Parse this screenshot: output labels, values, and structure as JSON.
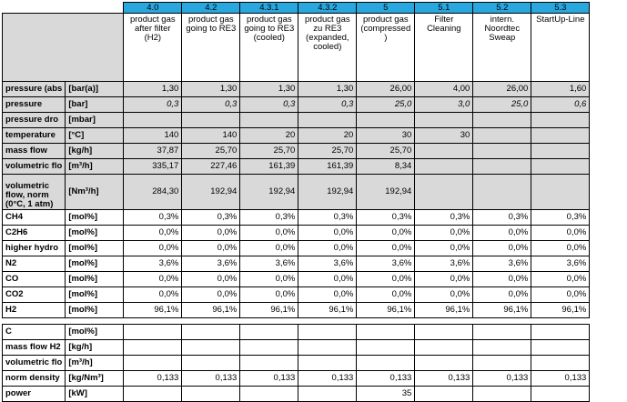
{
  "columns": [
    {
      "id": "4.0",
      "desc": "product gas after filter (H2)"
    },
    {
      "id": "4.2",
      "desc": "product gas going to RE3"
    },
    {
      "id": "4.3.1",
      "desc": "product gas going to RE3 (cooled)"
    },
    {
      "id": "4.3.2",
      "desc": "product gas zu RE3 (expanded, cooled)"
    },
    {
      "id": "5",
      "desc": "product gas (compressed )"
    },
    {
      "id": "5.1",
      "desc": "Filter Cleaning"
    },
    {
      "id": "5.2",
      "desc": "intern. Noordtec Sweap"
    },
    {
      "id": "5.3",
      "desc": "StartUp-Line"
    }
  ],
  "rows": [
    {
      "label": "pressure (abs",
      "unit": "[bar(a)]",
      "values": [
        "1,30",
        "1,30",
        "1,30",
        "1,30",
        "26,00",
        "4,00",
        "26,00",
        "1,60"
      ],
      "shade": true,
      "italic": false
    },
    {
      "label": "pressure",
      "unit": "[bar]",
      "values": [
        "0,3",
        "0,3",
        "0,3",
        "0,3",
        "25,0",
        "3,0",
        "25,0",
        "0,6"
      ],
      "shade": true,
      "italic": true
    },
    {
      "label": "pressure dro",
      "unit": "[mbar]",
      "values": [
        "",
        "",
        "",
        "",
        "",
        "",
        "",
        ""
      ],
      "shade": true,
      "italic": false
    },
    {
      "label": "temperature",
      "unit": "[°C]",
      "values": [
        "140",
        "140",
        "20",
        "20",
        "30",
        "30",
        "",
        ""
      ],
      "shade": true,
      "italic": false
    },
    {
      "label": "mass flow",
      "unit": "[kg/h]",
      "values": [
        "37,87",
        "25,70",
        "25,70",
        "25,70",
        "25,70",
        "",
        "",
        ""
      ],
      "shade": true,
      "italic": false
    },
    {
      "label": "volumetric flo",
      "unit": "[m³/h]",
      "values": [
        "335,17",
        "227,46",
        "161,39",
        "161,39",
        "8,34",
        "",
        "",
        ""
      ],
      "shade": true,
      "italic": false
    },
    {
      "label": "volumetric flow, norm (0°C, 1 atm)",
      "unit": "[Nm³/h]",
      "values": [
        "284,30",
        "192,94",
        "192,94",
        "192,94",
        "192,94",
        "",
        "",
        ""
      ],
      "shade": true,
      "italic": false,
      "tall": true
    },
    {
      "label": "CH4",
      "unit": "[mol%]",
      "values": [
        "0,3%",
        "0,3%",
        "0,3%",
        "0,3%",
        "0,3%",
        "0,3%",
        "0,3%",
        "0,3%"
      ],
      "shade": false,
      "italic": false
    },
    {
      "label": "C2H6",
      "unit": "[mol%]",
      "values": [
        "0,0%",
        "0,0%",
        "0,0%",
        "0,0%",
        "0,0%",
        "0,0%",
        "0,0%",
        "0,0%"
      ],
      "shade": false,
      "italic": false
    },
    {
      "label": "higher hydro",
      "unit": "[mol%]",
      "values": [
        "0,0%",
        "0,0%",
        "0,0%",
        "0,0%",
        "0,0%",
        "0,0%",
        "0,0%",
        "0,0%"
      ],
      "shade": false,
      "italic": false
    },
    {
      "label": "N2",
      "unit": "[mol%]",
      "values": [
        "3,6%",
        "3,6%",
        "3,6%",
        "3,6%",
        "3,6%",
        "3,6%",
        "3,6%",
        "3,6%"
      ],
      "shade": false,
      "italic": false
    },
    {
      "label": "CO",
      "unit": "[mol%]",
      "values": [
        "0,0%",
        "0,0%",
        "0,0%",
        "0,0%",
        "0,0%",
        "0,0%",
        "0,0%",
        "0,0%"
      ],
      "shade": false,
      "italic": false
    },
    {
      "label": "CO2",
      "unit": "[mol%]",
      "values": [
        "0,0%",
        "0,0%",
        "0,0%",
        "0,0%",
        "0,0%",
        "0,0%",
        "0,0%",
        "0,0%"
      ],
      "shade": false,
      "italic": false
    },
    {
      "label": "H2",
      "unit": "[mol%]",
      "values": [
        "96,1%",
        "96,1%",
        "96,1%",
        "96,1%",
        "96,1%",
        "96,1%",
        "96,1%",
        "96,1%"
      ],
      "shade": false,
      "italic": false
    },
    {
      "gap": true
    },
    {
      "label": "C",
      "unit": "[mol%]",
      "values": [
        "",
        "",
        "",
        "",
        "",
        "",
        "",
        ""
      ],
      "shade": false,
      "italic": false
    },
    {
      "label": "mass flow H2",
      "unit": "[kg/h]",
      "values": [
        "",
        "",
        "",
        "",
        "",
        "",
        "",
        ""
      ],
      "shade": false,
      "italic": false
    },
    {
      "label": "volumetric flo",
      "unit": "[m³/h]",
      "values": [
        "",
        "",
        "",
        "",
        "",
        "",
        "",
        ""
      ],
      "shade": false,
      "italic": false
    },
    {
      "label": "norm density",
      "unit": "[kg/Nm³]",
      "values": [
        "0,133",
        "0,133",
        "0,133",
        "0,133",
        "0,133",
        "0,133",
        "0,133",
        "0,133"
      ],
      "shade": false,
      "italic": false
    },
    {
      "label": "power",
      "unit": "[kW]",
      "values": [
        "",
        "",
        "",
        "",
        "35",
        "",
        "",
        ""
      ],
      "shade": false,
      "italic": false
    }
  ]
}
